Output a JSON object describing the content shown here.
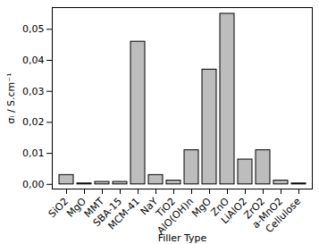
{
  "chart_data": {
    "type": "bar",
    "x_label": "Filler Type",
    "y_label": "σᵢ / S.cm⁻¹",
    "categories": [
      "SiO2",
      "MgO",
      "MMT",
      "SBA-15",
      "MCM-41",
      "NaY",
      "TiO2",
      "AlO(OH)n",
      "MgO",
      "ZnO",
      "LiAlO2",
      "ZrO2",
      "a-MnO2",
      "Cellulose"
    ],
    "values": [
      0.003,
      0.0003,
      0.0008,
      0.0008,
      0.046,
      0.003,
      0.0012,
      0.011,
      0.037,
      0.055,
      0.008,
      0.011,
      0.0012,
      0.0003
    ],
    "color": "#bdbdbd",
    "ylim": [
      -0.0015,
      0.057
    ],
    "yticks": [
      {
        "value": 0,
        "label": "0,00"
      },
      {
        "value": 0.01,
        "label": "0,01"
      },
      {
        "value": 0.02,
        "label": "0,02"
      },
      {
        "value": 0.03,
        "label": "0,03"
      },
      {
        "value": 0.04,
        "label": "0,04"
      },
      {
        "value": 0.05,
        "label": "0,05"
      }
    ],
    "grid": false
  }
}
